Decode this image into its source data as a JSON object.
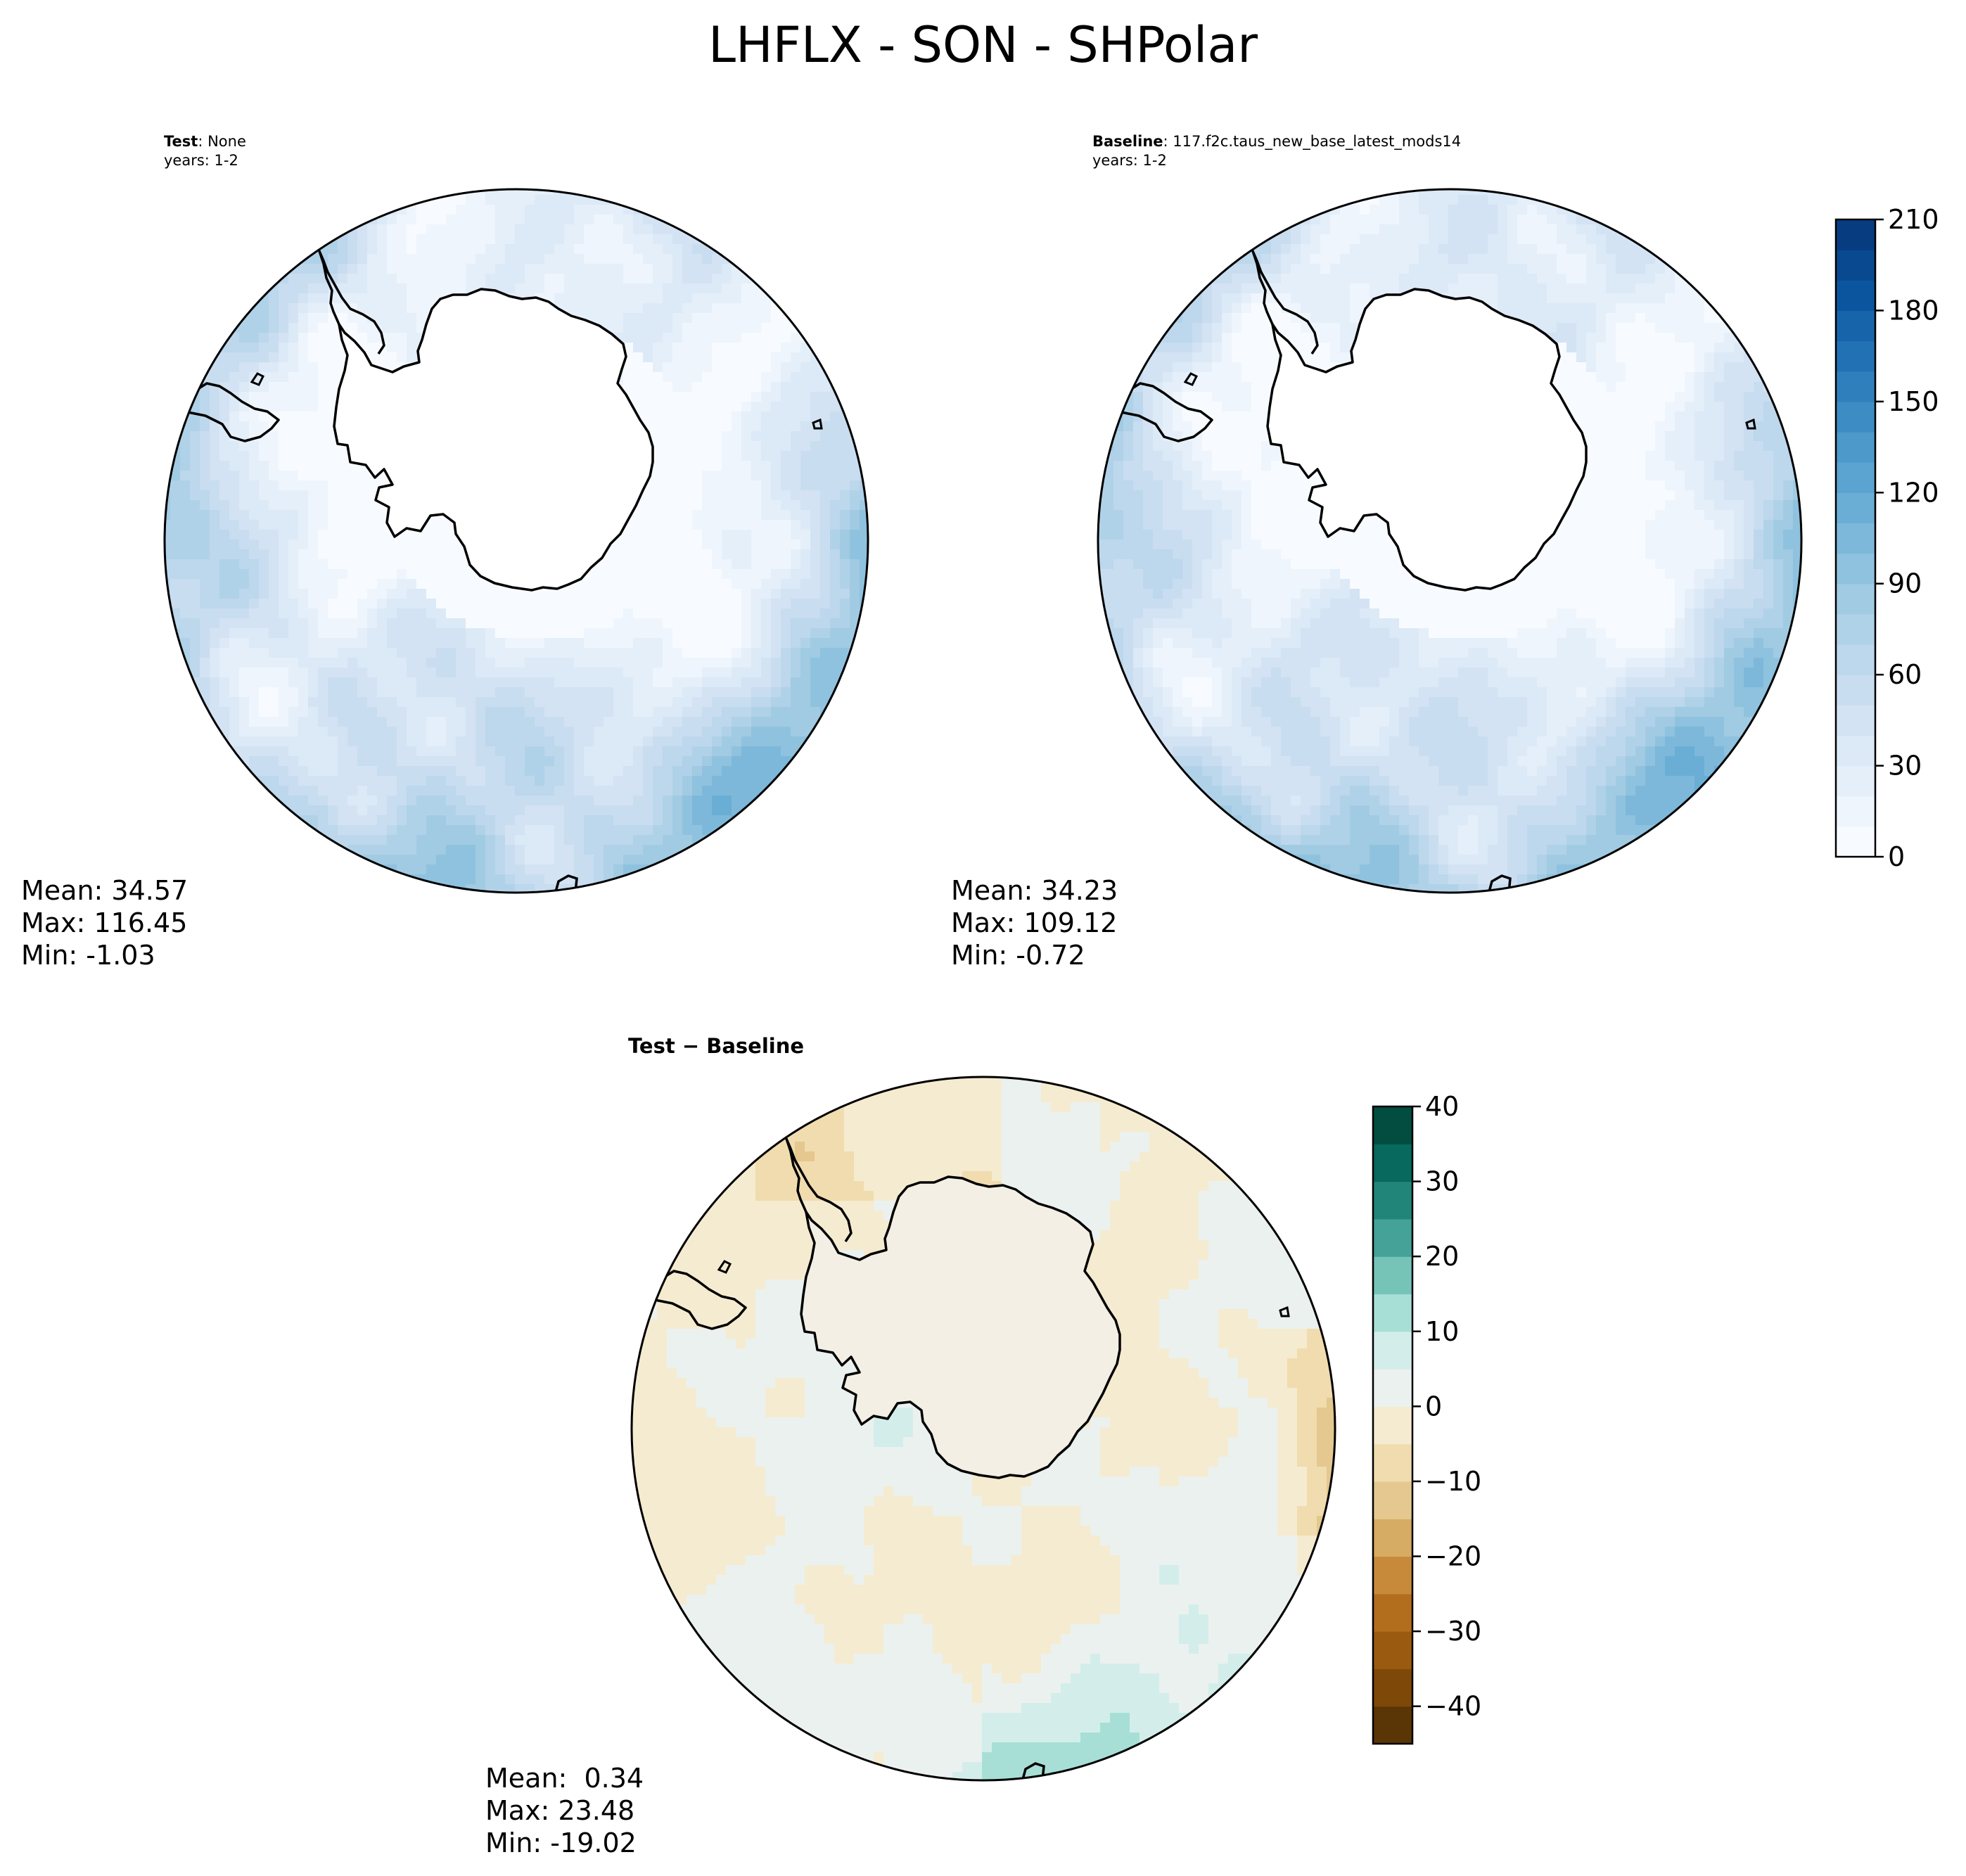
{
  "figure_title": "LHFLX - SON - SHPolar",
  "panels": [
    {
      "id": "test",
      "title_bold": "Test",
      "title_rest": ": None",
      "years": "years: 1-2",
      "stats": {
        "mean": "Mean: 34.57",
        "max": "Max: 116.45",
        "min": "Min: -1.03"
      }
    },
    {
      "id": "baseline",
      "title_bold": "Baseline",
      "title_rest": ": 117.f2c.taus_new_base_latest_mods14",
      "years": "years: 1-2",
      "stats": {
        "mean": "Mean: 34.23",
        "max": "Max: 109.12",
        "min": "Min: -0.72"
      }
    },
    {
      "id": "diff",
      "title": "Test − Baseline",
      "stats": {
        "mean": "Mean:  0.34",
        "max": "Max: 23.48",
        "min": "Min: -19.02"
      }
    }
  ],
  "chart_data": [
    {
      "type": "heatmap",
      "subtype": "filled contour map, south polar stereographic",
      "panel": "Test",
      "value_range": [
        0,
        210
      ],
      "colormap": "Blues",
      "mean": 34.57,
      "max": 116.45,
      "min": -1.03
    },
    {
      "type": "heatmap",
      "subtype": "filled contour map, south polar stereographic",
      "panel": "Baseline",
      "value_range": [
        0,
        210
      ],
      "colormap": "Blues",
      "mean": 34.23,
      "max": 109.12,
      "min": -0.72
    },
    {
      "type": "heatmap",
      "subtype": "filled contour map, south polar stereographic",
      "panel": "Test - Baseline",
      "value_range": [
        -45,
        40
      ],
      "colormap": "BrBG",
      "mean": 0.34,
      "max": 23.48,
      "min": -19.02
    }
  ],
  "colorbars": {
    "top": {
      "levels": [
        0,
        10,
        20,
        30,
        40,
        50,
        60,
        70,
        80,
        90,
        100,
        110,
        120,
        130,
        140,
        150,
        160,
        170,
        180,
        190,
        200,
        210
      ],
      "ticks": [
        {
          "value": 0,
          "label": "0"
        },
        {
          "value": 30,
          "label": "30"
        },
        {
          "value": 60,
          "label": "60"
        },
        {
          "value": 90,
          "label": "90"
        },
        {
          "value": 120,
          "label": "120"
        },
        {
          "value": 150,
          "label": "150"
        },
        {
          "value": 180,
          "label": "180"
        },
        {
          "value": 210,
          "label": "210"
        }
      ],
      "colors": [
        "#f7fbff",
        "#eef5fc",
        "#e5eff9",
        "#dce9f6",
        "#d3e3f3",
        "#c9ddf0",
        "#bdd7ec",
        "#b0d2e8",
        "#a1cbe2",
        "#8fc2de",
        "#7db8da",
        "#6aaed6",
        "#5ba3d0",
        "#4c99ca",
        "#3d8dc4",
        "#2f7fbc",
        "#2271b5",
        "#1764ab",
        "#0b559f",
        "#084990",
        "#083c80"
      ]
    },
    "bottom": {
      "levels": [
        -45,
        -40,
        -35,
        -30,
        -25,
        -20,
        -15,
        -10,
        -5,
        0,
        5,
        10,
        15,
        20,
        25,
        30,
        35,
        40
      ],
      "ticks": [
        {
          "value": -40,
          "label": "−40"
        },
        {
          "value": -30,
          "label": "−30"
        },
        {
          "value": -20,
          "label": "−20"
        },
        {
          "value": -10,
          "label": "−10"
        },
        {
          "value": 0,
          "label": "0"
        },
        {
          "value": 10,
          "label": "10"
        },
        {
          "value": 20,
          "label": "20"
        },
        {
          "value": 30,
          "label": "30"
        },
        {
          "value": 40,
          "label": "40"
        }
      ],
      "colors": [
        "#5a3505",
        "#7e4808",
        "#9a5a0f",
        "#b26d1d",
        "#c68a3a",
        "#d6ab63",
        "#e4c88f",
        "#f0dcae",
        "#f5ebd0",
        "#ebf1ef",
        "#d3eeea",
        "#a7dfd6",
        "#76c4b7",
        "#44a298",
        "#218579",
        "#08695e",
        "#024d40"
      ]
    }
  }
}
